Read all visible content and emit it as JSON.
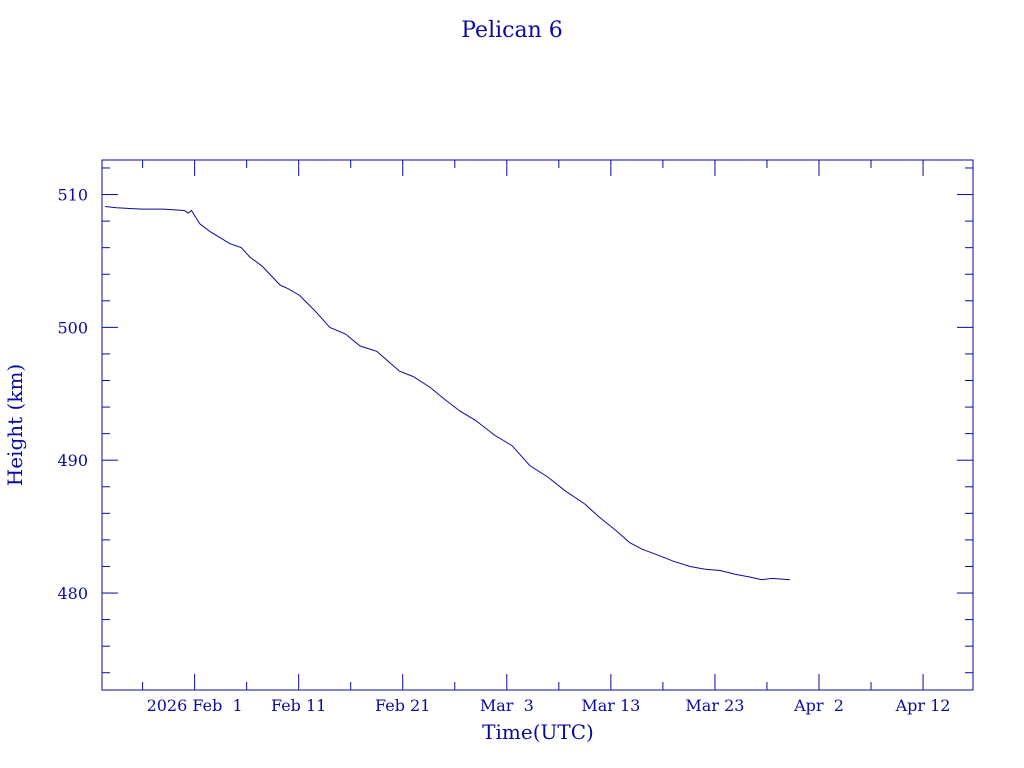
{
  "chart_data": {
    "type": "line",
    "title": "Pelican 6",
    "xlabel": "Time(UTC)",
    "ylabel": "Height (km)",
    "x_unit": "days since 2026 Feb 1 00:00 UTC",
    "xlim": [
      -8.9,
      74.8
    ],
    "ylim": [
      472.7,
      512.6
    ],
    "color": "#0a0aa0",
    "grid": false,
    "x_ticks": [
      {
        "value": 0,
        "label": "2026 Feb  1"
      },
      {
        "value": 10,
        "label": "Feb 11"
      },
      {
        "value": 20,
        "label": "Feb 21"
      },
      {
        "value": 30,
        "label": "Mar  3"
      },
      {
        "value": 40,
        "label": "Mar 13"
      },
      {
        "value": 50,
        "label": "Mar 23"
      },
      {
        "value": 60,
        "label": "Apr  2"
      },
      {
        "value": 70,
        "label": "Apr 12"
      }
    ],
    "y_ticks": [
      {
        "value": 480,
        "label": "480"
      },
      {
        "value": 490,
        "label": "490"
      },
      {
        "value": 500,
        "label": "500"
      },
      {
        "value": 510,
        "label": "510"
      }
    ],
    "series": [
      {
        "name": "Pelican 6",
        "x": [
          -8.6,
          -7.5,
          -5,
          -3,
          -1,
          -0.6,
          -0.3,
          0.5,
          1.5,
          3.4,
          4.5,
          5.3,
          6.5,
          8.2,
          9,
          10.1,
          11.5,
          13,
          14.5,
          15.9,
          17.5,
          19.7,
          21,
          22.6,
          24,
          25.5,
          27,
          28.8,
          30.5,
          32.2,
          34,
          35.6,
          37.5,
          38.9,
          40.5,
          41.8,
          43,
          44.7,
          46,
          47.6,
          49,
          50.5,
          52,
          53.4,
          54.5,
          55.5,
          57.2
        ],
        "y": [
          509.1,
          509.0,
          508.9,
          508.9,
          508.8,
          508.6,
          508.8,
          507.8,
          507.2,
          506.3,
          506.0,
          505.3,
          504.6,
          503.2,
          502.9,
          502.4,
          501.3,
          500.0,
          499.5,
          498.6,
          498.2,
          496.7,
          496.3,
          495.5,
          494.6,
          493.7,
          493.0,
          491.9,
          491.1,
          489.6,
          488.7,
          487.7,
          486.7,
          485.7,
          484.7,
          483.8,
          483.3,
          482.8,
          482.4,
          482.0,
          481.8,
          481.7,
          481.4,
          481.2,
          481.0,
          481.1,
          481.0
        ]
      }
    ]
  }
}
